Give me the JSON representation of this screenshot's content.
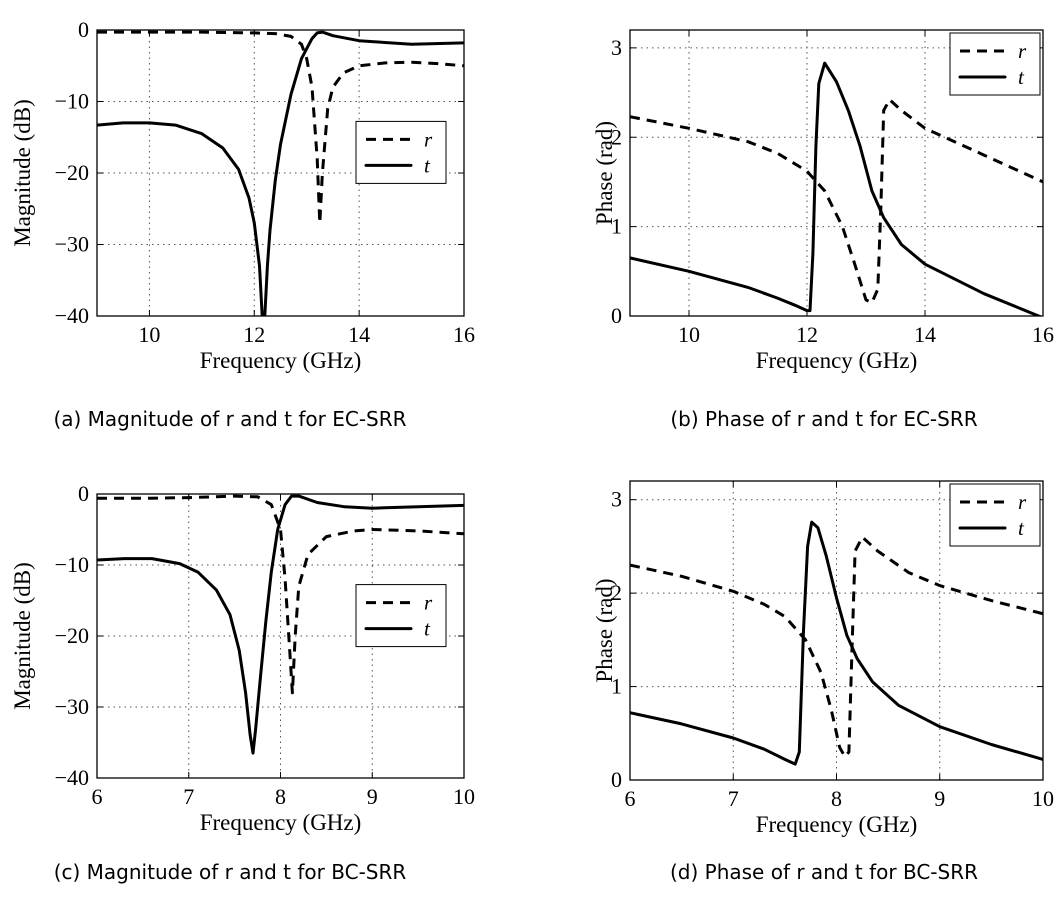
{
  "chart_data": [
    {
      "type": "line",
      "caption": "(a) Magnitude of r and t for EC-SRR",
      "xlabel": "Frequency (GHz)",
      "ylabel": "Magnitude (dB)",
      "xlim": [
        9,
        16
      ],
      "ylim": [
        -40,
        0
      ],
      "xticks": [
        10,
        12,
        14,
        16
      ],
      "yticks": [
        -40,
        -30,
        -20,
        -10,
        0
      ],
      "grid": true,
      "legend_position": "right-middle",
      "series": [
        {
          "name": "r",
          "style": "dashed",
          "x": [
            9,
            10,
            11,
            12,
            12.4,
            12.7,
            12.9,
            13.0,
            13.1,
            13.2,
            13.25,
            13.3,
            13.4,
            13.5,
            13.7,
            14.0,
            14.5,
            15.0,
            15.5,
            16
          ],
          "y": [
            -0.3,
            -0.3,
            -0.3,
            -0.4,
            -0.5,
            -0.9,
            -2,
            -4,
            -8,
            -18,
            -27,
            -20,
            -11,
            -8,
            -6,
            -5,
            -4.6,
            -4.5,
            -4.7,
            -5
          ]
        },
        {
          "name": "t",
          "style": "solid",
          "x": [
            9,
            9.5,
            10,
            10.5,
            11,
            11.4,
            11.7,
            11.9,
            12.0,
            12.1,
            12.15,
            12.2,
            12.25,
            12.3,
            12.4,
            12.5,
            12.7,
            12.9,
            13.1,
            13.2,
            13.3,
            13.5,
            14,
            15,
            16
          ],
          "y": [
            -13.3,
            -13,
            -13,
            -13.3,
            -14.5,
            -16.5,
            -19.5,
            -23.5,
            -27,
            -33,
            -40,
            -40,
            -33,
            -28,
            -21,
            -16,
            -9,
            -4,
            -1.2,
            -0.4,
            -0.3,
            -0.8,
            -1.5,
            -2,
            -1.8
          ]
        }
      ]
    },
    {
      "type": "line",
      "caption": "(b) Phase of r and t for EC-SRR",
      "xlabel": "Frequency (GHz)",
      "ylabel": "Phase (rad)",
      "xlim": [
        9,
        16
      ],
      "ylim": [
        0,
        3.2
      ],
      "xticks": [
        10,
        12,
        14,
        16
      ],
      "yticks": [
        0,
        1,
        2,
        3
      ],
      "grid": true,
      "legend_position": "top-right",
      "series": [
        {
          "name": "r",
          "style": "dashed",
          "x": [
            9,
            10,
            11,
            11.5,
            12,
            12.3,
            12.6,
            12.8,
            13.0,
            13.1,
            13.2,
            13.25,
            13.3,
            13.4,
            13.6,
            14,
            15,
            16
          ],
          "y": [
            2.23,
            2.1,
            1.95,
            1.82,
            1.62,
            1.4,
            1.0,
            0.6,
            0.18,
            0.15,
            0.3,
            1.2,
            2.3,
            2.42,
            2.3,
            2.1,
            1.8,
            1.5
          ]
        },
        {
          "name": "t",
          "style": "solid",
          "x": [
            9,
            10,
            11,
            11.5,
            11.8,
            12.0,
            12.05,
            12.1,
            12.15,
            12.2,
            12.3,
            12.5,
            12.7,
            12.9,
            13.1,
            13.3,
            13.6,
            14,
            15,
            16
          ],
          "y": [
            0.65,
            0.5,
            0.32,
            0.2,
            0.12,
            0.06,
            0.06,
            0.7,
            1.9,
            2.6,
            2.83,
            2.62,
            2.3,
            1.9,
            1.4,
            1.1,
            0.8,
            0.58,
            0.25,
            -0.02
          ]
        }
      ]
    },
    {
      "type": "line",
      "caption": "(c) Magnitude of r and t for BC-SRR",
      "xlabel": "Frequency (GHz)",
      "ylabel": "Magnitude (dB)",
      "xlim": [
        6,
        10
      ],
      "ylim": [
        -40,
        0
      ],
      "xticks": [
        6,
        7,
        8,
        9,
        10
      ],
      "yticks": [
        -40,
        -30,
        -20,
        -10,
        0
      ],
      "grid": true,
      "legend_position": "right-middle",
      "series": [
        {
          "name": "r",
          "style": "dashed",
          "x": [
            6,
            6.5,
            7,
            7.5,
            7.75,
            7.9,
            8.0,
            8.05,
            8.1,
            8.13,
            8.16,
            8.2,
            8.3,
            8.5,
            8.8,
            9.0,
            9.5,
            10
          ],
          "y": [
            -0.6,
            -0.6,
            -0.5,
            -0.3,
            -0.4,
            -1.5,
            -5,
            -12,
            -22,
            -28,
            -20,
            -13,
            -8.5,
            -6,
            -5.2,
            -5,
            -5.2,
            -5.6
          ]
        },
        {
          "name": "t",
          "style": "solid",
          "x": [
            6,
            6.3,
            6.6,
            6.9,
            7.1,
            7.3,
            7.45,
            7.55,
            7.62,
            7.67,
            7.7,
            7.73,
            7.78,
            7.84,
            7.9,
            7.97,
            8.05,
            8.12,
            8.2,
            8.4,
            8.7,
            9.0,
            9.5,
            10
          ],
          "y": [
            -9.3,
            -9.1,
            -9.1,
            -9.8,
            -11,
            -13.5,
            -17,
            -22,
            -28,
            -34,
            -36.5,
            -33,
            -26,
            -18,
            -11,
            -5,
            -1.5,
            -0.3,
            -0.3,
            -1.2,
            -1.8,
            -2,
            -1.8,
            -1.6
          ]
        }
      ]
    },
    {
      "type": "line",
      "caption": "(d) Phase of r and t for BC-SRR",
      "xlabel": "Frequency (GHz)",
      "ylabel": "Phase (rad)",
      "xlim": [
        6,
        10
      ],
      "ylim": [
        0,
        3.2
      ],
      "xticks": [
        6,
        7,
        8,
        9,
        10
      ],
      "yticks": [
        0,
        1,
        2,
        3
      ],
      "grid": true,
      "legend_position": "top-right",
      "series": [
        {
          "name": "r",
          "style": "dashed",
          "x": [
            6,
            6.5,
            7,
            7.3,
            7.5,
            7.7,
            7.85,
            7.95,
            8.03,
            8.08,
            8.12,
            8.15,
            8.18,
            8.25,
            8.4,
            8.7,
            9.0,
            9.5,
            10
          ],
          "y": [
            2.3,
            2.18,
            2.02,
            1.88,
            1.75,
            1.5,
            1.15,
            0.75,
            0.35,
            0.25,
            0.3,
            1.4,
            2.45,
            2.6,
            2.45,
            2.22,
            2.08,
            1.92,
            1.78
          ]
        },
        {
          "name": "t",
          "style": "solid",
          "x": [
            6,
            6.5,
            7,
            7.3,
            7.5,
            7.6,
            7.64,
            7.68,
            7.72,
            7.76,
            7.82,
            7.9,
            8.0,
            8.1,
            8.2,
            8.35,
            8.6,
            9.0,
            9.5,
            10
          ],
          "y": [
            0.72,
            0.6,
            0.45,
            0.33,
            0.22,
            0.17,
            0.3,
            1.6,
            2.5,
            2.76,
            2.7,
            2.4,
            1.95,
            1.55,
            1.3,
            1.05,
            0.8,
            0.57,
            0.38,
            0.22
          ]
        }
      ]
    }
  ]
}
